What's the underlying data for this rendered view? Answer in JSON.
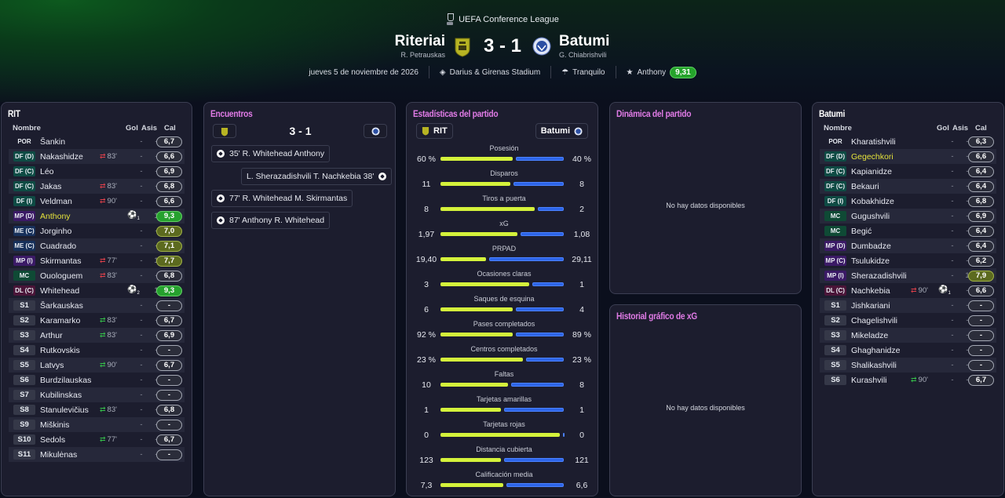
{
  "header": {
    "competition": "UEFA Conference League",
    "home_team": "Riteriai",
    "home_coach": "R. Petrauskas",
    "away_team": "Batumi",
    "away_coach": "G. Chiabrishvili",
    "score": "3 - 1",
    "date": "jueves 5 de noviembre de 2026",
    "stadium": "Darius & Girenas Stadium",
    "weather": "Tranquilo",
    "motm_name": "Anthony",
    "motm_rating": "9,31"
  },
  "colors": {
    "accent_pink": "#e07be6",
    "home_bar": "#d4f23b",
    "away_bar": "#2d65e8",
    "rating_green": "#26a12e",
    "rating_olive": "#5c6a1f"
  },
  "home_panel": {
    "title": "RIT",
    "columns": {
      "name": "Nombre",
      "goals": "Gol",
      "assists": "Asis",
      "rating": "Cal"
    },
    "players": [
      {
        "pos": "POR",
        "name": "Šankin",
        "goals": "-",
        "assists": "-",
        "rating": "6,7"
      },
      {
        "pos": "DF (D)",
        "name": "Nakashidze",
        "sub": "83'",
        "goals": "-",
        "assists": "-",
        "rating": "6,6"
      },
      {
        "pos": "DF (C)",
        "name": "Léo",
        "goals": "-",
        "assists": "-",
        "rating": "6,9"
      },
      {
        "pos": "DF (C)",
        "name": "Jakas",
        "sub": "83'",
        "goals": "-",
        "assists": "-",
        "rating": "6,8"
      },
      {
        "pos": "DF (I)",
        "name": "Veldman",
        "sub": "90'",
        "goals": "-",
        "assists": "-",
        "rating": "6,6"
      },
      {
        "pos": "MP (D)",
        "name": "Anthony",
        "goals": "1",
        "assists": "1",
        "rating": "9,3"
      },
      {
        "pos": "ME (C)",
        "name": "Jorginho",
        "goals": "-",
        "assists": "-",
        "rating": "7,0"
      },
      {
        "pos": "ME (C)",
        "name": "Cuadrado",
        "goals": "-",
        "assists": "-",
        "rating": "7,1"
      },
      {
        "pos": "MP (I)",
        "name": "Skirmantas",
        "sub": "77'",
        "goals": "-",
        "assists": "1",
        "rating": "7,7"
      },
      {
        "pos": "MC",
        "name": "Ouologuem",
        "sub": "83'",
        "goals": "-",
        "assists": "-",
        "rating": "6,8"
      },
      {
        "pos": "DL (C)",
        "name": "Whitehead",
        "goals": "2",
        "assists": "1",
        "rating": "9,3"
      },
      {
        "pos": "S1",
        "name": "Šarkauskas",
        "goals": "-",
        "assists": "-",
        "rating": "-"
      },
      {
        "pos": "S2",
        "name": "Karamarko",
        "sub": "83'",
        "goals": "-",
        "assists": "-",
        "rating": "6,7"
      },
      {
        "pos": "S3",
        "name": "Arthur",
        "sub": "83'",
        "goals": "-",
        "assists": "-",
        "rating": "6,9"
      },
      {
        "pos": "S4",
        "name": "Rutkovskis",
        "goals": "-",
        "assists": "-",
        "rating": "-"
      },
      {
        "pos": "S5",
        "name": "Latvys",
        "sub": "90'",
        "goals": "-",
        "assists": "-",
        "rating": "6,7"
      },
      {
        "pos": "S6",
        "name": "Burdzilauskas",
        "goals": "-",
        "assists": "-",
        "rating": "-"
      },
      {
        "pos": "S7",
        "name": "Kubilinskas",
        "goals": "-",
        "assists": "-",
        "rating": "-"
      },
      {
        "pos": "S8",
        "name": "Stanulevičius",
        "sub": "83'",
        "goals": "-",
        "assists": "-",
        "rating": "6,8"
      },
      {
        "pos": "S9",
        "name": "Miškinis",
        "goals": "-",
        "assists": "-",
        "rating": "-"
      },
      {
        "pos": "S10",
        "name": "Sedols",
        "sub": "77'",
        "goals": "-",
        "assists": "-",
        "rating": "6,7"
      },
      {
        "pos": "S11",
        "name": "Mikulėnas",
        "goals": "-",
        "assists": "-",
        "rating": "-"
      }
    ]
  },
  "away_panel": {
    "title": "Batumi",
    "columns": {
      "name": "Nombre",
      "goals": "Gol",
      "assists": "Asis",
      "rating": "Cal"
    },
    "players": [
      {
        "pos": "POR",
        "name": "Kharatishvili",
        "goals": "-",
        "assists": "-",
        "rating": "6,3"
      },
      {
        "pos": "DF (D)",
        "name": "Gegechkori",
        "goals": "-",
        "assists": "-",
        "rating": "6,6"
      },
      {
        "pos": "DF (C)",
        "name": "Kapianidze",
        "goals": "-",
        "assists": "-",
        "rating": "6,4"
      },
      {
        "pos": "DF (C)",
        "name": "Bekauri",
        "goals": "-",
        "assists": "-",
        "rating": "6,4"
      },
      {
        "pos": "DF (I)",
        "name": "Kobakhidze",
        "goals": "-",
        "assists": "-",
        "rating": "6,8"
      },
      {
        "pos": "MC",
        "name": "Gugushvili",
        "goals": "-",
        "assists": "-",
        "rating": "6,9"
      },
      {
        "pos": "MC",
        "name": "Begić",
        "goals": "-",
        "assists": "-",
        "rating": "6,4"
      },
      {
        "pos": "MP (D)",
        "name": "Dumbadze",
        "goals": "-",
        "assists": "-",
        "rating": "6,4"
      },
      {
        "pos": "MP (C)",
        "name": "Tsulukidze",
        "goals": "-",
        "assists": "-",
        "rating": "6,2"
      },
      {
        "pos": "MP (I)",
        "name": "Sherazadishvili",
        "goals": "-",
        "assists": "1",
        "rating": "7,9"
      },
      {
        "pos": "DL (C)",
        "name": "Nachkebia",
        "sub": "90'",
        "goals": "1",
        "assists": "-",
        "rating": "6,6"
      },
      {
        "pos": "S1",
        "name": "Jishkariani",
        "goals": "-",
        "assists": "-",
        "rating": "-"
      },
      {
        "pos": "S2",
        "name": "Chagelishvili",
        "goals": "-",
        "assists": "-",
        "rating": "-"
      },
      {
        "pos": "S3",
        "name": "Mikeladze",
        "goals": "-",
        "assists": "-",
        "rating": "-"
      },
      {
        "pos": "S4",
        "name": "Ghaghanidze",
        "goals": "-",
        "assists": "-",
        "rating": "-"
      },
      {
        "pos": "S5",
        "name": "Shalikashvili",
        "goals": "-",
        "assists": "-",
        "rating": "-"
      },
      {
        "pos": "S6",
        "name": "Kurashvili",
        "sub": "90'",
        "goals": "-",
        "assists": "-",
        "rating": "6,7"
      }
    ]
  },
  "events_panel": {
    "title": "Encuentros",
    "score": "3 - 1",
    "events": [
      {
        "text": "35' R. Whitehead Anthony",
        "side": "home"
      },
      {
        "text": "L. Sherazadishvili T. Nachkebia 38'",
        "side": "away"
      },
      {
        "text": "77' R. Whitehead M. Skirmantas",
        "side": "home"
      },
      {
        "text": "87' Anthony R. Whitehead",
        "side": "home"
      }
    ]
  },
  "stats_panel": {
    "title": "Estadísticas del partido",
    "home_label": "RIT",
    "away_label": "Batumi",
    "stats": [
      {
        "label": "Posesión",
        "home": "60 %",
        "away": "40 %",
        "hf": 0.6
      },
      {
        "label": "Disparos",
        "home": "11",
        "away": "8",
        "hf": 0.58
      },
      {
        "label": "Tiros a puerta",
        "home": "8",
        "away": "2",
        "hf": 0.78
      },
      {
        "label": "xG",
        "home": "1,97",
        "away": "1,08",
        "hf": 0.64
      },
      {
        "label": "PRPAD",
        "home": "19,40",
        "away": "29,11",
        "hf": 0.38
      },
      {
        "label": "Ocasiones claras",
        "home": "3",
        "away": "1",
        "hf": 0.73
      },
      {
        "label": "Saques de esquina",
        "home": "6",
        "away": "4",
        "hf": 0.6
      },
      {
        "label": "Pases completados",
        "home": "92 %",
        "away": "89 %",
        "hf": 0.6
      },
      {
        "label": "Centros completados",
        "home": "23 %",
        "away": "23 %",
        "hf": 0.68
      },
      {
        "label": "Faltas",
        "home": "10",
        "away": "8",
        "hf": 0.56
      },
      {
        "label": "Tarjetas amarillas",
        "home": "1",
        "away": "1",
        "hf": 0.5
      },
      {
        "label": "Tarjetas rojas",
        "home": "0",
        "away": "0",
        "hf": 0.98
      },
      {
        "label": "Distancia cubierta",
        "home": "123",
        "away": "121",
        "hf": 0.5
      },
      {
        "label": "Calificación media",
        "home": "7,3",
        "away": "6,6",
        "hf": 0.52
      }
    ]
  },
  "dynamics_panel": {
    "title": "Dinámica del partido",
    "empty": "No hay datos disponibles"
  },
  "xg_panel": {
    "title": "Historial gráfico de xG",
    "empty": "No hay datos disponibles"
  }
}
